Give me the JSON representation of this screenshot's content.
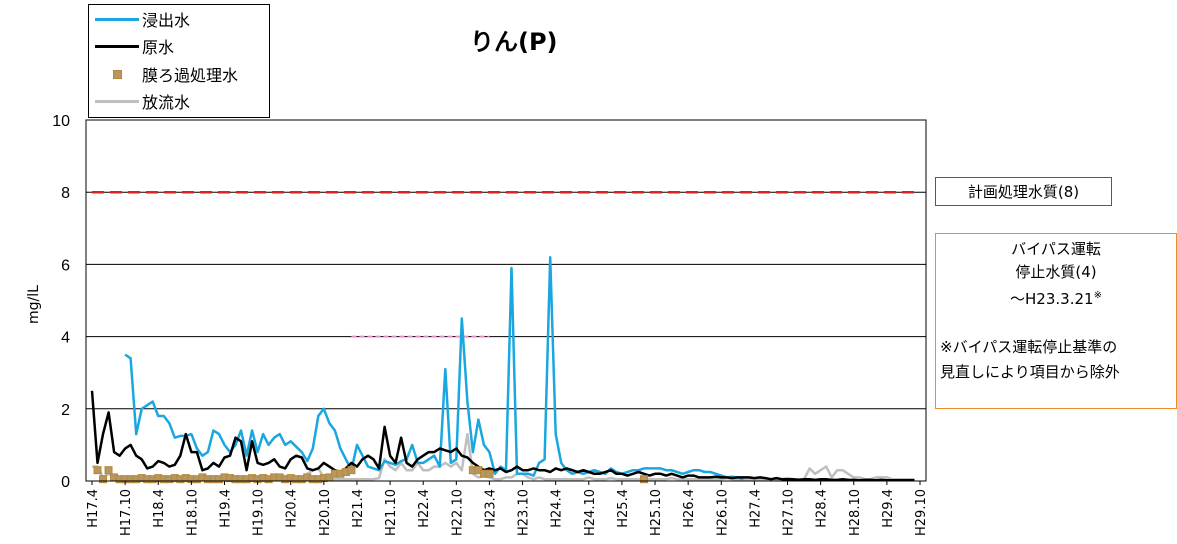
{
  "title": "りん(P)",
  "legend": [
    {
      "name": "浸出水",
      "color": "#1aa7e0",
      "kind": "line"
    },
    {
      "name": "原水",
      "color": "#000000",
      "kind": "line"
    },
    {
      "name": "膜ろ過処理水",
      "color": "#b5975f",
      "kind": "marker"
    },
    {
      "name": "放流水",
      "color": "#bfbfbf",
      "kind": "line"
    }
  ],
  "notes": {
    "plan": "計画処理水質(8)",
    "bypass_line1": "バイパス運転",
    "bypass_line2": "停止水質(4)",
    "bypass_line3": "～H23.3.21",
    "bypass_mark": "※",
    "bypass_line4": "※バイパス運転停止基準の",
    "bypass_line5": "見直しにより項目から除外"
  },
  "chart_data": {
    "type": "line",
    "title": "りん(P)",
    "ylabel": "mg/lL",
    "xlabel": "",
    "ylim": [
      0,
      10
    ],
    "yticks": [
      0,
      2,
      4,
      6,
      8,
      10
    ],
    "grid": true,
    "legend_position": "top-left",
    "xlim": [
      0,
      150
    ],
    "categories": [
      "H17.4",
      "H17.10",
      "H18.4",
      "H18.10",
      "H19.4",
      "H19.10",
      "H20.4",
      "H20.10",
      "H21.4",
      "H21.10",
      "H22.4",
      "H22.10",
      "H23.4",
      "H23.10",
      "H24.4",
      "H24.10",
      "H25.4",
      "H25.10",
      "H26.4",
      "H26.10",
      "H27.4",
      "H27.10",
      "H28.4",
      "H28.10",
      "H29.4",
      "H29.10"
    ],
    "reference_lines": [
      {
        "label": "計画処理水質(8)",
        "y": 8,
        "x_from": 0,
        "x_to": 150,
        "color": "#e02020",
        "style": "dashed"
      },
      {
        "label": "停止水質(4)",
        "y": 4,
        "x_from": 47,
        "x_to": 72,
        "color": "#f08cc8",
        "style": "dashed"
      }
    ],
    "series": [
      {
        "name": "浸出水",
        "color": "#1aa7e0",
        "kind": "line",
        "x": [
          6,
          7,
          8,
          9,
          10,
          11,
          12,
          13,
          14,
          15,
          16,
          17,
          18,
          19,
          20,
          21,
          22,
          23,
          24,
          25,
          26,
          27,
          28,
          29,
          30,
          31,
          32,
          33,
          34,
          35,
          36,
          37,
          38,
          39,
          40,
          41,
          42,
          43,
          44,
          45,
          46,
          47,
          48,
          49,
          50,
          51,
          52,
          53,
          54,
          55,
          56,
          57,
          58,
          59,
          60,
          61,
          62,
          63,
          64,
          65,
          66,
          67,
          68,
          69,
          70,
          71,
          72,
          73,
          74,
          75,
          76,
          77,
          78,
          79,
          80,
          81,
          82,
          83,
          84,
          85,
          86,
          87,
          88,
          89,
          90,
          91,
          92,
          93,
          94,
          95,
          96,
          97,
          98,
          99,
          100,
          101,
          102,
          103,
          104,
          105,
          106,
          107,
          108,
          109,
          110,
          111,
          112,
          113,
          114,
          115,
          116,
          117,
          118
        ],
        "y": [
          3.5,
          3.4,
          1.3,
          2.0,
          2.1,
          2.2,
          1.8,
          1.8,
          1.6,
          1.2,
          1.25,
          1.25,
          1.3,
          0.9,
          0.7,
          0.8,
          1.4,
          1.3,
          1.0,
          0.8,
          1.0,
          1.4,
          0.7,
          1.4,
          0.8,
          1.3,
          1.0,
          1.2,
          1.3,
          1.0,
          1.1,
          0.95,
          0.8,
          0.55,
          0.9,
          1.8,
          2.0,
          1.6,
          1.4,
          0.9,
          0.6,
          0.3,
          1.0,
          0.7,
          0.4,
          0.35,
          0.3,
          0.55,
          0.5,
          0.45,
          0.55,
          0.6,
          1.0,
          0.5,
          0.5,
          0.6,
          0.7,
          0.4,
          3.1,
          0.5,
          0.6,
          4.5,
          2.2,
          0.8,
          1.7,
          1.0,
          0.8,
          0.2,
          0.4,
          0.3,
          5.9,
          0.2,
          0.2,
          0.2,
          0.15,
          0.5,
          0.6,
          6.2,
          1.3,
          0.5,
          0.3,
          0.2,
          0.25,
          0.2,
          0.25,
          0.3,
          0.25,
          0.2,
          0.35,
          0.25,
          0.2,
          0.25,
          0.3,
          0.3,
          0.35,
          0.35,
          0.35,
          0.35,
          0.3,
          0.3,
          0.25,
          0.2,
          0.25,
          0.3,
          0.3,
          0.25,
          0.25,
          0.2,
          0.15,
          0.1,
          0.12,
          0.1,
          0.05
        ]
      },
      {
        "name": "原水",
        "color": "#000000",
        "kind": "line",
        "x": [
          0,
          1,
          2,
          3,
          4,
          5,
          6,
          7,
          8,
          9,
          10,
          11,
          12,
          13,
          14,
          15,
          16,
          17,
          18,
          19,
          20,
          21,
          22,
          23,
          24,
          25,
          26,
          27,
          28,
          29,
          30,
          31,
          32,
          33,
          34,
          35,
          36,
          37,
          38,
          39,
          40,
          41,
          42,
          43,
          44,
          45,
          46,
          47,
          48,
          49,
          50,
          51,
          52,
          53,
          54,
          55,
          56,
          57,
          58,
          59,
          60,
          61,
          62,
          63,
          64,
          65,
          66,
          67,
          68,
          69,
          70,
          71,
          72,
          73,
          74,
          75,
          76,
          77,
          78,
          79,
          80,
          81,
          82,
          83,
          84,
          85,
          86,
          87,
          88,
          89,
          90,
          91,
          92,
          93,
          94,
          95,
          96,
          97,
          98,
          99,
          100,
          101,
          102,
          103,
          104,
          105,
          106,
          107,
          108,
          109,
          110,
          111,
          112,
          113,
          114,
          115,
          116,
          117,
          118,
          119,
          120,
          121,
          122,
          123,
          124,
          125,
          126,
          127,
          128,
          129,
          130,
          131,
          132,
          133,
          134,
          135,
          136,
          137,
          138,
          139,
          140,
          141,
          142,
          143,
          144,
          145,
          146,
          147,
          148,
          149
        ],
        "y": [
          2.5,
          0.5,
          1.3,
          1.9,
          0.8,
          0.7,
          0.9,
          1.0,
          0.7,
          0.6,
          0.35,
          0.4,
          0.55,
          0.5,
          0.4,
          0.45,
          0.7,
          1.3,
          0.8,
          0.8,
          0.3,
          0.35,
          0.5,
          0.4,
          0.65,
          0.7,
          1.2,
          1.1,
          0.3,
          1.1,
          0.5,
          0.45,
          0.5,
          0.6,
          0.4,
          0.35,
          0.6,
          0.7,
          0.65,
          0.35,
          0.3,
          0.35,
          0.5,
          0.4,
          0.3,
          0.25,
          0.35,
          0.5,
          0.4,
          0.6,
          0.7,
          0.6,
          0.35,
          1.5,
          0.7,
          0.5,
          1.2,
          0.5,
          0.4,
          0.6,
          0.7,
          0.8,
          0.8,
          0.9,
          0.85,
          0.8,
          0.9,
          0.7,
          0.65,
          0.5,
          0.4,
          0.3,
          0.35,
          0.3,
          0.35,
          0.25,
          0.3,
          0.4,
          0.3,
          0.3,
          0.35,
          0.3,
          0.3,
          0.25,
          0.35,
          0.3,
          0.35,
          0.3,
          0.25,
          0.3,
          0.25,
          0.2,
          0.2,
          0.25,
          0.3,
          0.2,
          0.2,
          0.15,
          0.2,
          0.25,
          0.2,
          0.15,
          0.2,
          0.2,
          0.15,
          0.2,
          0.15,
          0.1,
          0.15,
          0.15,
          0.1,
          0.1,
          0.1,
          0.12,
          0.1,
          0.1,
          0.08,
          0.1,
          0.1,
          0.1,
          0.08,
          0.1,
          0.08,
          0.05,
          0.08,
          0.05,
          0.05,
          0.05,
          0.03,
          0.05,
          0.05,
          0.03,
          0.05,
          0.05,
          0.03,
          0.03,
          0.05,
          0.03,
          0.03,
          0.02,
          0.03,
          0.03,
          0.02,
          0.03,
          0.02,
          0.02,
          0.02,
          0.02,
          0.02,
          0.02
        ]
      },
      {
        "name": "膜ろ過処理水",
        "color": "#b5975f",
        "kind": "marker",
        "x": [
          1,
          2,
          3,
          4,
          5,
          6,
          7,
          8,
          9,
          10,
          11,
          12,
          13,
          14,
          15,
          16,
          17,
          18,
          19,
          20,
          21,
          22,
          23,
          24,
          25,
          26,
          27,
          28,
          29,
          30,
          31,
          32,
          33,
          34,
          35,
          36,
          37,
          38,
          39,
          40,
          41,
          42,
          43,
          44,
          45,
          46,
          47,
          69,
          70,
          71,
          72,
          100
        ],
        "y": [
          0.3,
          0.05,
          0.3,
          0.1,
          0.05,
          0.05,
          0.05,
          0.05,
          0.08,
          0.05,
          0.05,
          0.08,
          0.05,
          0.05,
          0.08,
          0.05,
          0.08,
          0.05,
          0.05,
          0.1,
          0.05,
          0.05,
          0.05,
          0.1,
          0.08,
          0.05,
          0.05,
          0.05,
          0.08,
          0.05,
          0.08,
          0.05,
          0.1,
          0.1,
          0.05,
          0.08,
          0.05,
          0.05,
          0.1,
          0.05,
          0.05,
          0.08,
          0.1,
          0.2,
          0.2,
          0.25,
          0.3,
          0.3,
          0.3,
          0.2,
          0.2,
          0.05
        ]
      },
      {
        "name": "放流水",
        "color": "#bfbfbf",
        "kind": "line",
        "x": [
          0,
          1,
          2,
          3,
          4,
          5,
          6,
          7,
          8,
          9,
          10,
          11,
          12,
          13,
          14,
          15,
          16,
          17,
          18,
          19,
          20,
          21,
          22,
          23,
          24,
          25,
          26,
          27,
          28,
          29,
          30,
          31,
          32,
          33,
          34,
          35,
          36,
          37,
          38,
          39,
          40,
          41,
          42,
          43,
          44,
          45,
          46,
          47,
          48,
          49,
          50,
          51,
          52,
          53,
          54,
          55,
          56,
          57,
          58,
          59,
          60,
          61,
          62,
          63,
          64,
          65,
          66,
          67,
          68,
          69,
          70,
          71,
          72,
          73,
          74,
          75,
          76,
          77,
          78,
          79,
          80,
          81,
          82,
          83,
          84,
          85,
          86,
          87,
          88,
          89,
          90,
          91,
          92,
          93,
          94,
          95,
          96,
          97,
          98,
          99,
          100,
          101,
          102,
          103,
          104,
          105,
          106,
          107,
          108,
          109,
          110,
          111,
          112,
          113,
          114,
          115,
          116,
          117,
          118,
          119,
          120,
          121,
          122,
          123,
          124,
          125,
          126,
          127,
          128,
          129,
          130,
          131,
          132,
          133,
          134,
          135,
          136,
          137,
          138,
          139,
          140,
          141,
          142,
          143,
          144,
          145,
          146,
          147,
          148,
          149
        ],
        "y": [
          0.4,
          0.4,
          0.1,
          0.2,
          0.1,
          0.05,
          0.08,
          0.05,
          0.05,
          0.05,
          0.05,
          0.1,
          0.05,
          0.05,
          0.08,
          0.05,
          0.05,
          0.08,
          0.05,
          0.05,
          0.1,
          0.08,
          0.05,
          0.05,
          0.1,
          0.05,
          0.05,
          0.08,
          0.05,
          0.05,
          0.1,
          0.05,
          0.08,
          0.05,
          0.1,
          0.08,
          0.05,
          0.05,
          0.1,
          0.2,
          0.3,
          0.35,
          0.1,
          0.05,
          0.05,
          0.05,
          0.05,
          0.05,
          0.05,
          0.05,
          0.05,
          0.05,
          0.08,
          0.6,
          0.4,
          0.3,
          0.5,
          0.3,
          0.3,
          0.5,
          0.3,
          0.3,
          0.4,
          0.4,
          0.5,
          0.4,
          0.5,
          0.3,
          1.3,
          0.2,
          0.1,
          0.15,
          0.1,
          0.05,
          0.05,
          0.1,
          0.1,
          0.2,
          0.2,
          0.1,
          0.05,
          0.1,
          0.05,
          0.05,
          0.05,
          0.05,
          0.05,
          0.05,
          0.05,
          0.05,
          0.1,
          0.05,
          0.05,
          0.05,
          0.08,
          0.05,
          0.05,
          0.05,
          0.05,
          0.05,
          0.05,
          0.05,
          0.05,
          0.05,
          0.05,
          0.08,
          0.05,
          0.05,
          0.05,
          0.05,
          0.05,
          0.05,
          0.05,
          0.05,
          0.05,
          0.08,
          0.05,
          0.05,
          0.05,
          0.05,
          0.05,
          0.05,
          0.05,
          0.05,
          0.05,
          0.05,
          0.08,
          0.05,
          0.05,
          0.05,
          0.35,
          0.2,
          0.3,
          0.4,
          0.1,
          0.3,
          0.3,
          0.2,
          0.1,
          0.1,
          0.05,
          0.05,
          0.1,
          0.1,
          0.1,
          0.05,
          0.05,
          0.05,
          0.05,
          0.05
        ]
      }
    ]
  }
}
